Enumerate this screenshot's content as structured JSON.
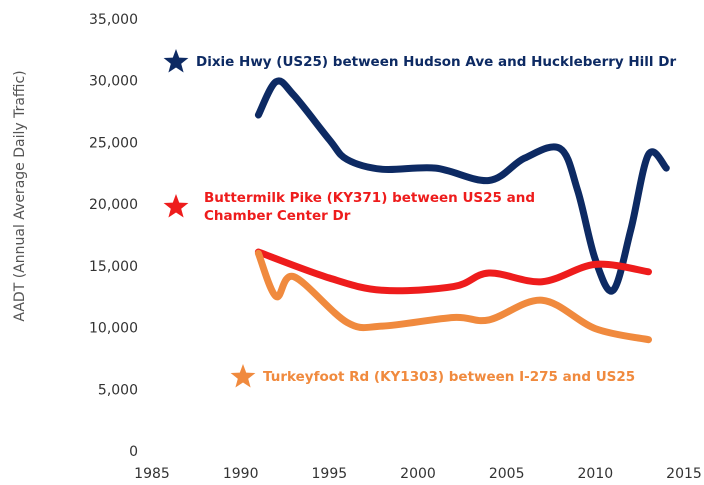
{
  "chart_data": {
    "type": "line",
    "ylabel": "AADT (Annual Average Daily Traffic)",
    "xlim": [
      1985,
      2015
    ],
    "xticks": [
      1985,
      1990,
      1995,
      2000,
      2005,
      2010,
      2015
    ],
    "ylim": [
      0,
      35000
    ],
    "yticks": [
      0,
      {
        "value": 5000,
        "label": "5,000"
      },
      {
        "value": 10000,
        "label": "10,000"
      },
      {
        "value": 15000,
        "label": "15,000"
      },
      {
        "value": 20000,
        "label": "20,000"
      },
      {
        "value": 25000,
        "label": "25,000"
      },
      {
        "value": 30000,
        "label": "30,000"
      },
      {
        "value": 35000,
        "label": "35,000"
      }
    ],
    "grid": false,
    "series": [
      {
        "name": "Dixie Hwy (US25) between Hudson Ave and Huckleberry Hill Dr",
        "color": "#0d2a63",
        "x": [
          1991,
          1992,
          1993,
          1995,
          1996,
          1998,
          2001,
          2004,
          2006,
          2008,
          2009,
          2010,
          2011,
          2012,
          2013,
          2014
        ],
        "values": [
          27300,
          30000,
          28900,
          25300,
          23700,
          22900,
          23000,
          22000,
          23800,
          24600,
          21200,
          15600,
          13100,
          18000,
          24100,
          23000
        ]
      },
      {
        "name": "Buttermilk Pike (KY371) between US25 and Chamber Center Dr",
        "color": "#ee1c1c",
        "x": [
          1991,
          1995,
          1998,
          2002,
          2004,
          2007,
          2010,
          2013
        ],
        "values": [
          16200,
          14100,
          13100,
          13400,
          14500,
          13800,
          15200,
          14600
        ]
      },
      {
        "name": "Turkeyfoot Rd (KY1303) between I-275 and US25",
        "color": "#f08a3e",
        "x": [
          1991,
          1992,
          1993,
          1996,
          1998,
          2002,
          2004,
          2007,
          2010,
          2013
        ],
        "values": [
          16100,
          12600,
          14200,
          10500,
          10200,
          10900,
          10700,
          12300,
          10000,
          9100
        ]
      }
    ]
  }
}
